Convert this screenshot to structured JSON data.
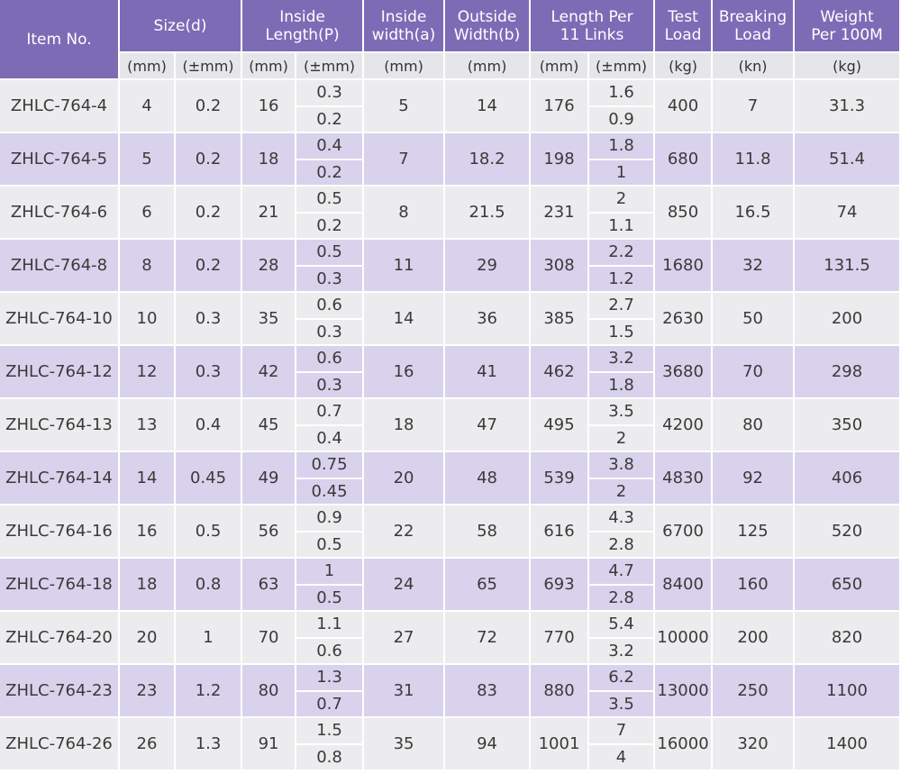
{
  "header": {
    "item_no": "Item No.",
    "size": "Size(d)",
    "inside_length": [
      "Inside",
      "Length(P)"
    ],
    "inside_width": [
      "Inside",
      "width(a)"
    ],
    "outside_width": [
      "Outside",
      "Width(b)"
    ],
    "length_per": [
      "Length Per",
      "11 Links"
    ],
    "test_load": [
      "Test",
      "Load"
    ],
    "breaking_load": [
      "Breaking",
      "Load"
    ],
    "weight": [
      "Weight",
      "Per 100M"
    ]
  },
  "units": [
    "(mm)",
    "(±mm)",
    "(mm)",
    "(±mm)",
    "(mm)",
    "(mm)",
    "(mm)",
    "(±mm)",
    "(kg)",
    "(kn)",
    "(kg)"
  ],
  "rows": [
    {
      "item": "ZHLC-764-4",
      "d": "4",
      "d_tol": "0.2",
      "p": "16",
      "p_tol": [
        "0.3",
        "0.2"
      ],
      "a": "5",
      "b": "14",
      "l11": "176",
      "l11_tol": [
        "1.6",
        "0.9"
      ],
      "test": "400",
      "break": "7",
      "weight": "31.3"
    },
    {
      "item": "ZHLC-764-5",
      "d": "5",
      "d_tol": "0.2",
      "p": "18",
      "p_tol": [
        "0.4",
        "0.2"
      ],
      "a": "7",
      "b": "18.2",
      "l11": "198",
      "l11_tol": [
        "1.8",
        "1"
      ],
      "test": "680",
      "break": "11.8",
      "weight": "51.4"
    },
    {
      "item": "ZHLC-764-6",
      "d": "6",
      "d_tol": "0.2",
      "p": "21",
      "p_tol": [
        "0.5",
        "0.2"
      ],
      "a": "8",
      "b": "21.5",
      "l11": "231",
      "l11_tol": [
        "2",
        "1.1"
      ],
      "test": "850",
      "break": "16.5",
      "weight": "74"
    },
    {
      "item": "ZHLC-764-8",
      "d": "8",
      "d_tol": "0.2",
      "p": "28",
      "p_tol": [
        "0.5",
        "0.3"
      ],
      "a": "11",
      "b": "29",
      "l11": "308",
      "l11_tol": [
        "2.2",
        "1.2"
      ],
      "test": "1680",
      "break": "32",
      "weight": "131.5"
    },
    {
      "item": "ZHLC-764-10",
      "d": "10",
      "d_tol": "0.3",
      "p": "35",
      "p_tol": [
        "0.6",
        "0.3"
      ],
      "a": "14",
      "b": "36",
      "l11": "385",
      "l11_tol": [
        "2.7",
        "1.5"
      ],
      "test": "2630",
      "break": "50",
      "weight": "200"
    },
    {
      "item": "ZHLC-764-12",
      "d": "12",
      "d_tol": "0.3",
      "p": "42",
      "p_tol": [
        "0.6",
        "0.3"
      ],
      "a": "16",
      "b": "41",
      "l11": "462",
      "l11_tol": [
        "3.2",
        "1.8"
      ],
      "test": "3680",
      "break": "70",
      "weight": "298"
    },
    {
      "item": "ZHLC-764-13",
      "d": "13",
      "d_tol": "0.4",
      "p": "45",
      "p_tol": [
        "0.7",
        "0.4"
      ],
      "a": "18",
      "b": "47",
      "l11": "495",
      "l11_tol": [
        "3.5",
        "2"
      ],
      "test": "4200",
      "break": "80",
      "weight": "350"
    },
    {
      "item": "ZHLC-764-14",
      "d": "14",
      "d_tol": "0.45",
      "p": "49",
      "p_tol": [
        "0.75",
        "0.45"
      ],
      "a": "20",
      "b": "48",
      "l11": "539",
      "l11_tol": [
        "3.8",
        "2"
      ],
      "test": "4830",
      "break": "92",
      "weight": "406"
    },
    {
      "item": "ZHLC-764-16",
      "d": "16",
      "d_tol": "0.5",
      "p": "56",
      "p_tol": [
        "0.9",
        "0.5"
      ],
      "a": "22",
      "b": "58",
      "l11": "616",
      "l11_tol": [
        "4.3",
        "2.8"
      ],
      "test": "6700",
      "break": "125",
      "weight": "520"
    },
    {
      "item": "ZHLC-764-18",
      "d": "18",
      "d_tol": "0.8",
      "p": "63",
      "p_tol": [
        "1",
        "0.5"
      ],
      "a": "24",
      "b": "65",
      "l11": "693",
      "l11_tol": [
        "4.7",
        "2.8"
      ],
      "test": "8400",
      "break": "160",
      "weight": "650"
    },
    {
      "item": "ZHLC-764-20",
      "d": "20",
      "d_tol": "1",
      "p": "70",
      "p_tol": [
        "1.1",
        "0.6"
      ],
      "a": "27",
      "b": "72",
      "l11": "770",
      "l11_tol": [
        "5.4",
        "3.2"
      ],
      "test": "10000",
      "break": "200",
      "weight": "820"
    },
    {
      "item": "ZHLC-764-23",
      "d": "23",
      "d_tol": "1.2",
      "p": "80",
      "p_tol": [
        "1.3",
        "0.7"
      ],
      "a": "31",
      "b": "83",
      "l11": "880",
      "l11_tol": [
        "6.2",
        "3.5"
      ],
      "test": "13000",
      "break": "250",
      "weight": "1100"
    },
    {
      "item": "ZHLC-764-26",
      "d": "26",
      "d_tol": "1.3",
      "p": "91",
      "p_tol": [
        "1.5",
        "0.8"
      ],
      "a": "35",
      "b": "94",
      "l11": "1001",
      "l11_tol": [
        "7",
        "4"
      ],
      "test": "16000",
      "break": "320",
      "weight": "1400"
    }
  ]
}
